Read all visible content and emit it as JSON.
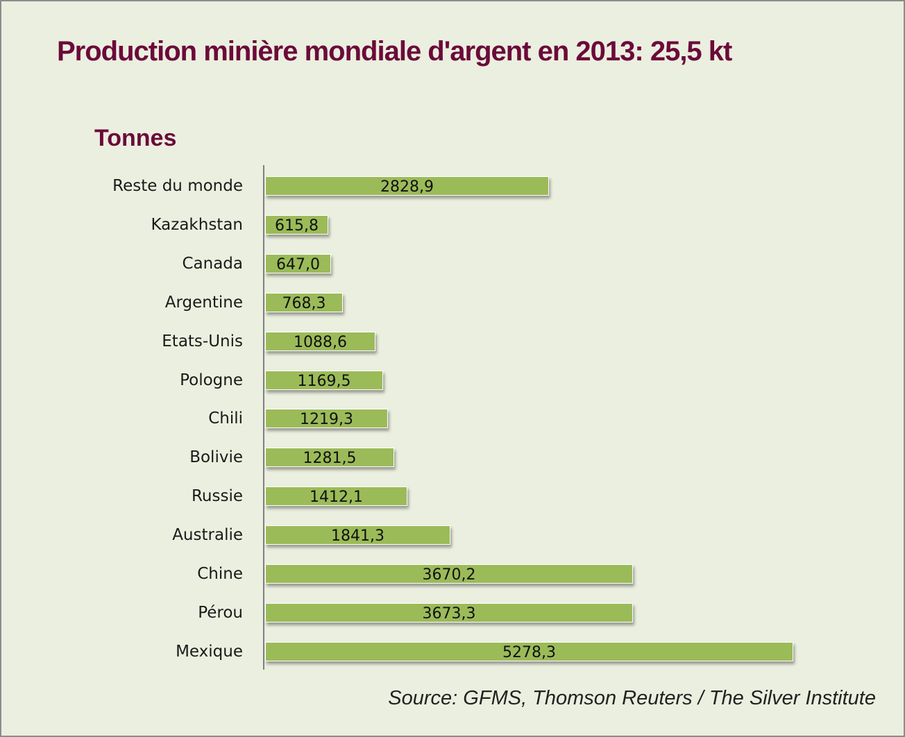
{
  "chart_data": {
    "type": "bar",
    "orientation": "horizontal",
    "title": "Production minière mondiale d'argent en 2013: 25,5 kt",
    "ylabel": "",
    "xlabel": "Tonnes",
    "categories": [
      "Reste du monde",
      "Kazakhstan",
      "Canada",
      "Argentine",
      "Etats-Unis",
      "Pologne",
      "Chili",
      "Bolivie",
      "Russie",
      "Australie",
      "Chine",
      "Pérou",
      "Mexique"
    ],
    "values": [
      2828.9,
      615.8,
      647.0,
      768.3,
      1088.6,
      1169.5,
      1219.3,
      1281.5,
      1412.1,
      1841.3,
      3670.2,
      3673.3,
      5278.3
    ],
    "value_labels": [
      "2828,9",
      "615,8",
      "647,0",
      "768,3",
      "1088,6",
      "1169,5",
      "1219,3",
      "1281,5",
      "1412,1",
      "1841,3",
      "3670,2",
      "3673,3",
      "5278,3"
    ],
    "bar_color": "#9bbb59",
    "grid": false,
    "legend": null,
    "source": "Source: GFMS, Thomson Reuters / The Silver Institute"
  },
  "header": {
    "title": "Production minière mondiale d'argent en 2013: 25,5 kt",
    "unit": "Tonnes"
  },
  "footer": {
    "source": "Source: GFMS, Thomson Reuters / The Silver Institute"
  },
  "colors": {
    "background": "#ebefdf",
    "title": "#6b0a3a",
    "bar": "#9bbb59"
  }
}
